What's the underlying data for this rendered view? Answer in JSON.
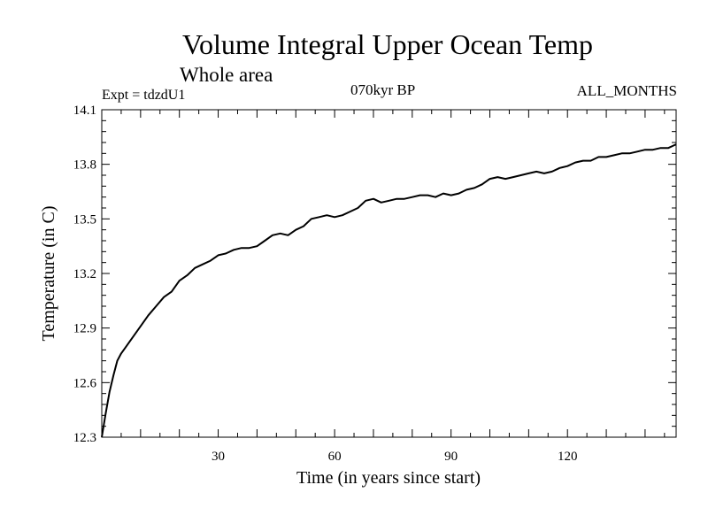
{
  "header": {
    "title": "Volume Integral Upper Ocean Temp",
    "subtitle": "Whole area",
    "experiment": "Expt = tdzdU1",
    "period": "070kyr BP",
    "months": "ALL_MONTHS"
  },
  "chart_data": {
    "type": "line",
    "title": "Volume Integral Upper Ocean Temp",
    "xlabel": "Time (in years since start)",
    "ylabel": "Temperature (in C)",
    "xlim": [
      0,
      148
    ],
    "ylim": [
      12.3,
      14.1
    ],
    "xticks": [
      30,
      60,
      90,
      120
    ],
    "yticks": [
      12.3,
      12.6,
      12.9,
      13.2,
      13.5,
      13.8,
      14.1
    ],
    "ytick_labels": [
      "12.3",
      "12.6",
      "12.9",
      "13.2",
      "13.5",
      "13.8",
      "14.1"
    ],
    "grid": false,
    "series": [
      {
        "name": "Volume Integral Upper Ocean Temp",
        "x": [
          0,
          1,
          2,
          3,
          4,
          5,
          6,
          8,
          10,
          12,
          14,
          16,
          18,
          20,
          22,
          24,
          26,
          28,
          30,
          32,
          34,
          36,
          38,
          40,
          42,
          44,
          46,
          48,
          50,
          52,
          54,
          56,
          58,
          60,
          62,
          64,
          66,
          68,
          70,
          72,
          74,
          76,
          78,
          80,
          82,
          84,
          86,
          88,
          90,
          92,
          94,
          96,
          98,
          100,
          102,
          104,
          106,
          108,
          110,
          112,
          114,
          116,
          118,
          120,
          122,
          124,
          126,
          128,
          130,
          132,
          134,
          136,
          138,
          140,
          142,
          144,
          146,
          148
        ],
        "values": [
          12.3,
          12.43,
          12.55,
          12.64,
          12.72,
          12.76,
          12.79,
          12.85,
          12.91,
          12.97,
          13.02,
          13.07,
          13.1,
          13.16,
          13.19,
          13.23,
          13.25,
          13.27,
          13.3,
          13.31,
          13.33,
          13.34,
          13.34,
          13.35,
          13.38,
          13.41,
          13.42,
          13.41,
          13.44,
          13.46,
          13.5,
          13.51,
          13.52,
          13.51,
          13.52,
          13.54,
          13.56,
          13.6,
          13.61,
          13.59,
          13.6,
          13.61,
          13.61,
          13.62,
          13.63,
          13.63,
          13.62,
          13.64,
          13.63,
          13.64,
          13.66,
          13.67,
          13.69,
          13.72,
          13.73,
          13.72,
          13.73,
          13.74,
          13.75,
          13.76,
          13.75,
          13.76,
          13.78,
          13.79,
          13.81,
          13.82,
          13.82,
          13.84,
          13.84,
          13.85,
          13.86,
          13.86,
          13.87,
          13.88,
          13.88,
          13.89,
          13.89,
          13.91
        ]
      }
    ]
  }
}
